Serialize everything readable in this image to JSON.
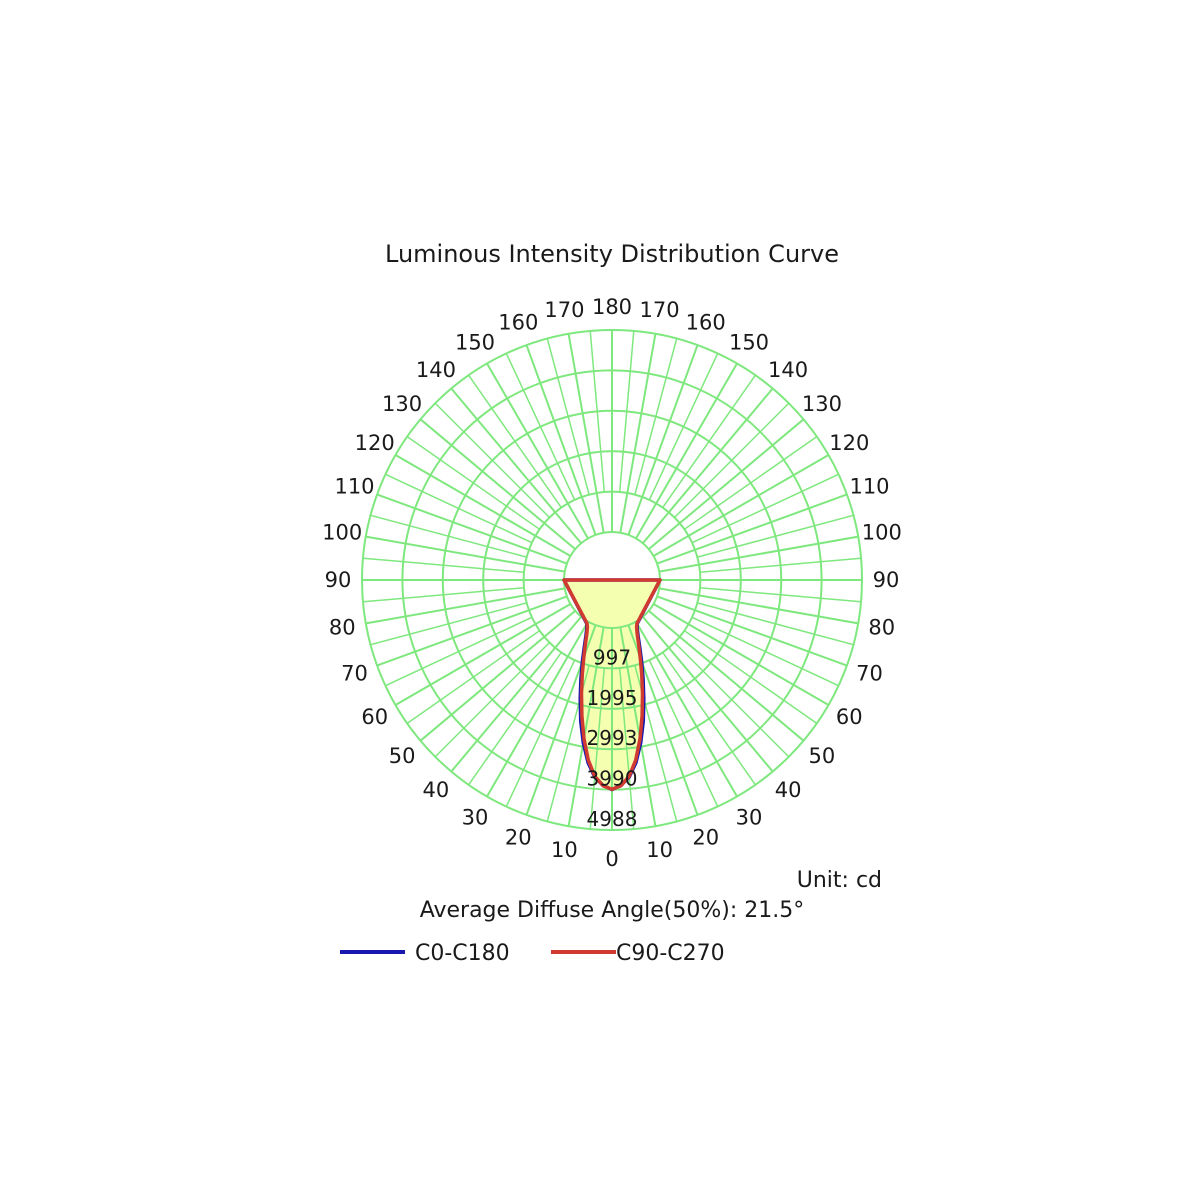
{
  "chart_data": {
    "type": "polar",
    "title": "Luminous Intensity Distribution Curve",
    "unit_label": "Unit: cd",
    "diffuse_angle_label": "Average Diffuse Angle(50%): 21.5°",
    "angle_labels": [
      0,
      10,
      20,
      30,
      40,
      50,
      60,
      70,
      80,
      90,
      100,
      110,
      120,
      130,
      140,
      150,
      160,
      170,
      180
    ],
    "ring_values": [
      997,
      1995,
      2993,
      3990,
      4988
    ],
    "rmax": 4988,
    "grid": true,
    "grid_color": "#7ee87e",
    "fill_color": "#f5ffb0",
    "legend_position": "bottom",
    "series": [
      {
        "name": "C0-C180",
        "color": "#1818b0",
        "angles": [
          0,
          2.5,
          5,
          7.5,
          10,
          12.5,
          15,
          17.5,
          20,
          22.5,
          25,
          27.5,
          30,
          90
        ],
        "values": [
          3990,
          3890,
          3700,
          3360,
          2900,
          2380,
          1850,
          1370,
          950,
          600,
          340,
          160,
          60,
          0
        ]
      },
      {
        "name": "C90-C270",
        "color": "#d03a30",
        "angles": [
          0,
          2.5,
          5,
          7.5,
          10,
          12.5,
          15,
          17.5,
          20,
          22.5,
          25,
          27.5,
          30,
          90
        ],
        "values": [
          3980,
          3900,
          3680,
          3300,
          2800,
          2250,
          1720,
          1250,
          850,
          530,
          290,
          130,
          50,
          0
        ]
      }
    ]
  }
}
